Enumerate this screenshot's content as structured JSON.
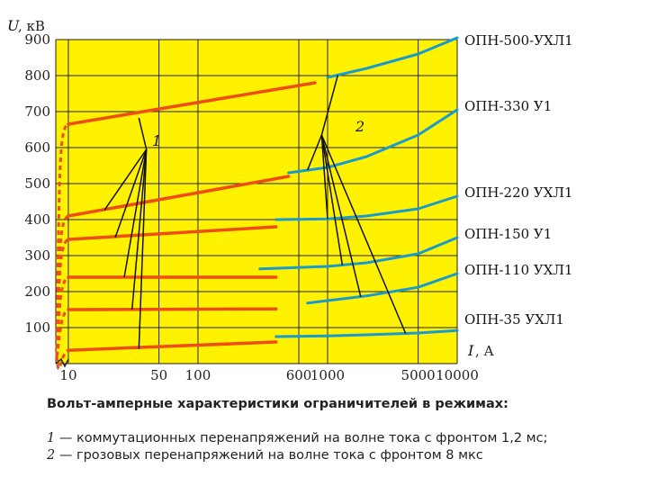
{
  "chart_data": {
    "type": "line",
    "title": "Вольт-амперные характеристики ограничителей в режимах:",
    "y_axis": {
      "symbol": "U",
      "unit": ", кВ",
      "ticks": [
        100,
        200,
        300,
        400,
        500,
        600,
        700,
        800,
        900
      ],
      "range": [
        0,
        900
      ]
    },
    "x_axis": {
      "symbol": "I",
      "unit": ", А",
      "scale": "log",
      "ticks": [
        10,
        50,
        100,
        600,
        1000,
        5000,
        10000
      ],
      "range": [
        8,
        10000
      ]
    },
    "grid": true,
    "colors": {
      "background": "#fff200",
      "mode1": "#ee4d16",
      "mode2": "#1a9bd0",
      "grid": "#222222"
    },
    "series": [
      {
        "name": "ОПН-500-УХЛ1",
        "mode1": {
          "x": [
            10,
            800
          ],
          "y": [
            665,
            780
          ]
        },
        "mode2": {
          "x": [
            1000,
            2000,
            5000,
            10000
          ],
          "y": [
            795,
            820,
            860,
            905
          ]
        }
      },
      {
        "name": "ОПН-330 У1",
        "mode1": {
          "x": [
            10,
            500
          ],
          "y": [
            410,
            520
          ]
        },
        "mode2": {
          "x": [
            500,
            1000,
            2000,
            5000,
            10000
          ],
          "y": [
            530,
            545,
            575,
            635,
            705
          ]
        }
      },
      {
        "name": "ОПН-220 УХЛ1",
        "mode1": {
          "x": [
            10,
            400
          ],
          "y": [
            345,
            380
          ]
        },
        "mode2": {
          "x": [
            400,
            1000,
            2000,
            5000,
            10000
          ],
          "y": [
            400,
            402,
            410,
            430,
            465
          ]
        }
      },
      {
        "name": "ОПН-150 У1",
        "mode1": {
          "x": [
            10,
            400
          ],
          "y": [
            240,
            240
          ]
        },
        "mode2": {
          "x": [
            300,
            1000,
            2000,
            5000,
            10000
          ],
          "y": [
            263,
            270,
            280,
            305,
            350
          ]
        }
      },
      {
        "name": "ОПН-110 УХЛ1",
        "mode1": {
          "x": [
            10,
            400
          ],
          "y": [
            150,
            152
          ]
        },
        "mode2": {
          "x": [
            700,
            1000,
            2000,
            5000,
            10000
          ],
          "y": [
            168,
            175,
            188,
            212,
            250
          ]
        }
      },
      {
        "name": "ОПН-35 УХЛ1",
        "mode1": {
          "x": [
            10,
            400
          ],
          "y": [
            37,
            60
          ]
        },
        "mode2": {
          "x": [
            400,
            1000,
            2000,
            5000,
            10000
          ],
          "y": [
            75,
            77,
            80,
            85,
            92
          ]
        }
      }
    ],
    "annotations": [
      {
        "label": "1",
        "mode": 1
      },
      {
        "label": "2",
        "mode": 2
      }
    ]
  },
  "caption": {
    "title": "Вольт-амперные характеристики ограничителей в режимах:",
    "line1_num": "1",
    "line1_text": " — коммутационных перенапряжений на волне тока с фронтом 1,2 мс;",
    "line2_num": "2",
    "line2_text": " — грозовых перенапряжений на волне тока с фронтом 8 мкс"
  }
}
